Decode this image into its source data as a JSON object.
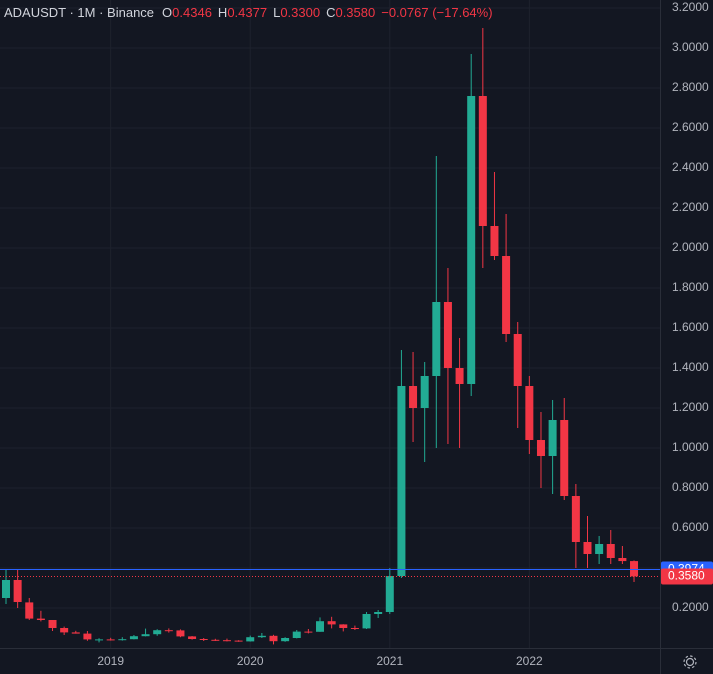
{
  "chart_data": {
    "type": "candlestick",
    "header": {
      "symbol": "ADAUSDT · 1M · Binance",
      "ohlc": [
        {
          "label": "O",
          "value": "0.4346"
        },
        {
          "label": "H",
          "value": "0.4377"
        },
        {
          "label": "L",
          "value": "0.3300"
        },
        {
          "label": "C",
          "value": "0.3580"
        }
      ],
      "change": "−0.0767 (−17.64%)"
    },
    "categories": [
      null,
      null,
      null,
      null,
      null,
      null,
      null,
      null,
      null,
      "2019",
      null,
      null,
      null,
      null,
      null,
      null,
      null,
      null,
      null,
      null,
      null,
      "2020",
      null,
      null,
      null,
      null,
      null,
      null,
      null,
      null,
      null,
      null,
      null,
      "2021",
      null,
      null,
      null,
      null,
      null,
      null,
      null,
      null,
      null,
      null,
      null,
      "2022",
      null,
      null,
      null,
      null,
      null,
      null,
      null,
      null,
      null
    ],
    "open": [
      0.25,
      0.34,
      0.228,
      0.147,
      0.14,
      0.1,
      0.078,
      0.072,
      0.043,
      0.043,
      0.04,
      0.044,
      0.059,
      0.069,
      0.089,
      0.088,
      0.058,
      0.045,
      0.041,
      0.039,
      0.037,
      0.033,
      0.054,
      0.061,
      0.034,
      0.05,
      0.082,
      0.081,
      0.134,
      0.118,
      0.1,
      0.098,
      0.17,
      0.18,
      0.36,
      1.31,
      1.2,
      1.36,
      1.73,
      1.4,
      1.32,
      2.76,
      2.11,
      1.96,
      1.57,
      1.31,
      1.04,
      0.96,
      1.14,
      0.76,
      0.53,
      0.47,
      0.52,
      0.45,
      0.4346
    ],
    "high": [
      0.39,
      0.39,
      0.25,
      0.186,
      0.14,
      0.107,
      0.086,
      0.085,
      0.049,
      0.051,
      0.054,
      0.065,
      0.097,
      0.094,
      0.098,
      0.093,
      0.06,
      0.05,
      0.046,
      0.047,
      0.039,
      0.062,
      0.075,
      0.066,
      0.054,
      0.09,
      0.095,
      0.153,
      0.156,
      0.119,
      0.112,
      0.18,
      0.19,
      0.4,
      1.49,
      1.48,
      1.43,
      2.46,
      1.9,
      1.55,
      2.97,
      3.1,
      2.38,
      2.17,
      1.63,
      1.36,
      1.18,
      1.24,
      1.25,
      0.82,
      0.66,
      0.56,
      0.59,
      0.51,
      0.4377
    ],
    "low": [
      0.22,
      0.2,
      0.14,
      0.133,
      0.085,
      0.065,
      0.072,
      0.036,
      0.028,
      0.037,
      0.037,
      0.043,
      0.058,
      0.061,
      0.077,
      0.054,
      0.042,
      0.035,
      0.035,
      0.033,
      0.031,
      0.032,
      0.05,
      0.018,
      0.031,
      0.048,
      0.073,
      0.081,
      0.098,
      0.083,
      0.09,
      0.095,
      0.15,
      0.17,
      0.35,
      1.03,
      0.93,
      1.0,
      1.02,
      1.0,
      1.26,
      1.9,
      1.94,
      1.53,
      1.1,
      0.97,
      0.8,
      0.77,
      0.74,
      0.4,
      0.4,
      0.42,
      0.42,
      0.42,
      0.33
    ],
    "close": [
      0.34,
      0.23,
      0.147,
      0.14,
      0.1,
      0.078,
      0.072,
      0.043,
      0.043,
      0.04,
      0.044,
      0.059,
      0.069,
      0.089,
      0.088,
      0.058,
      0.045,
      0.041,
      0.039,
      0.037,
      0.033,
      0.054,
      0.061,
      0.034,
      0.05,
      0.082,
      0.081,
      0.134,
      0.118,
      0.1,
      0.098,
      0.17,
      0.18,
      0.36,
      1.31,
      1.2,
      1.36,
      1.73,
      1.4,
      1.32,
      2.76,
      2.11,
      1.96,
      1.57,
      1.31,
      1.04,
      0.96,
      1.14,
      0.76,
      0.53,
      0.47,
      0.52,
      0.45,
      0.4346,
      0.358
    ],
    "up_color": "#22ab94",
    "down_color": "#f23645",
    "ylim": [
      0,
      3.24
    ],
    "yticks": [
      {
        "value": 0.2,
        "label": "0.2000"
      },
      {
        "value": 0.4,
        "label": "0.4000"
      },
      {
        "value": 0.6,
        "label": "0.6000"
      },
      {
        "value": 0.8,
        "label": "0.8000"
      },
      {
        "value": 1.0,
        "label": "1.0000"
      },
      {
        "value": 1.2,
        "label": "1.2000"
      },
      {
        "value": 1.4,
        "label": "1.4000"
      },
      {
        "value": 1.6,
        "label": "1.6000"
      },
      {
        "value": 1.8,
        "label": "1.8000"
      },
      {
        "value": 2.0,
        "label": "2.0000"
      },
      {
        "value": 2.2,
        "label": "2.2000"
      },
      {
        "value": 2.4,
        "label": "2.4000"
      },
      {
        "value": 2.6,
        "label": "2.6000"
      },
      {
        "value": 2.8,
        "label": "2.8000"
      },
      {
        "value": 3.0,
        "label": "3.0000"
      },
      {
        "value": 3.2,
        "label": "3.2000"
      }
    ],
    "price_lines": [
      {
        "value": 0.3974,
        "label": "0.3974",
        "color": "#2962ff",
        "style": "solid"
      },
      {
        "value": 0.358,
        "label": "0.3580",
        "color": "#f23645",
        "style": "dotted"
      }
    ]
  }
}
